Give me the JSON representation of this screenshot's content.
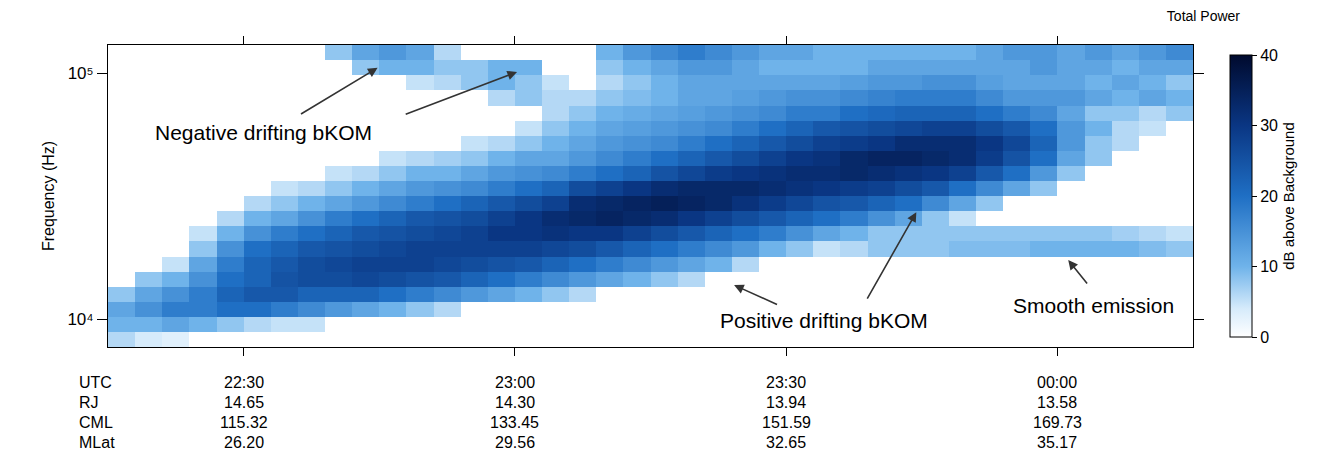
{
  "chart_data": {
    "type": "heatmap",
    "title": "Total Power",
    "y_label": "Frequency (Hz)",
    "log": "y",
    "xlim": [
      22.25,
      24.25
    ],
    "ylim": [
      7700,
      130000
    ],
    "xticks": [
      {
        "value": 22.5,
        "label": "22:30"
      },
      {
        "value": 23,
        "label": "23:00"
      },
      {
        "value": 23.5,
        "label": "23:30"
      },
      {
        "value": 24,
        "label": "00:00"
      }
    ],
    "yticks": [
      {
        "value": 10000,
        "label": "10⁴"
      },
      {
        "value": 100000,
        "label": "10⁵"
      }
    ],
    "xtick_title": "UTC",
    "xtick_rows": [
      {
        "name": "RJ",
        "labels": [
          "14.65",
          "14.30",
          "13.94",
          "13.58"
        ]
      },
      {
        "name": "CML",
        "labels": [
          "115.32",
          "133.45",
          "151.59",
          "169.73"
        ]
      },
      {
        "name": "MLat",
        "labels": [
          "26.20",
          "29.56",
          "32.65",
          "35.17"
        ]
      }
    ],
    "x_edges": [
      22.25,
      22.3,
      22.35,
      22.4,
      22.45,
      22.5,
      22.55,
      22.6,
      22.65,
      22.7,
      22.75,
      22.8,
      22.85,
      22.9,
      22.95,
      23,
      23.05,
      23.1,
      23.15,
      23.2,
      23.25,
      23.3,
      23.35,
      23.4,
      23.45,
      23.5,
      23.55,
      23.6,
      23.65,
      23.7,
      23.75,
      23.8,
      23.85,
      23.9,
      23.95,
      24,
      24.05,
      24.1,
      24.15,
      24.2,
      24.25
    ],
    "y_edges": [
      7700,
      8850,
      10200,
      11750,
      13550,
      15600,
      17950,
      20700,
      23800,
      27500,
      31600,
      36400,
      42000,
      48300,
      55700,
      64100,
      73800,
      85100,
      97900,
      113000,
      130000
    ],
    "values": [
      [
        6,
        4,
        3,
        0,
        0,
        0,
        0,
        0,
        0,
        0,
        0,
        0,
        0,
        0,
        0,
        0,
        0,
        0,
        0,
        0,
        0,
        0,
        0,
        0,
        0,
        0,
        0,
        0,
        0,
        0,
        0,
        0,
        0,
        0,
        0,
        0,
        0,
        0,
        0,
        0
      ],
      [
        10,
        10,
        12,
        10,
        8,
        6,
        5,
        5,
        0,
        0,
        0,
        0,
        0,
        0,
        0,
        0,
        0,
        0,
        0,
        0,
        0,
        0,
        0,
        0,
        0,
        0,
        0,
        0,
        0,
        0,
        0,
        0,
        0,
        0,
        0,
        0,
        0,
        0,
        0,
        0
      ],
      [
        12,
        15,
        18,
        18,
        20,
        20,
        18,
        16,
        14,
        12,
        10,
        8,
        6,
        0,
        0,
        0,
        0,
        0,
        0,
        0,
        0,
        0,
        0,
        0,
        0,
        0,
        0,
        0,
        0,
        0,
        0,
        0,
        0,
        0,
        0,
        0,
        0,
        0,
        0,
        0
      ],
      [
        8,
        12,
        15,
        18,
        22,
        24,
        24,
        22,
        22,
        22,
        20,
        18,
        16,
        14,
        12,
        10,
        8,
        6,
        0,
        0,
        0,
        0,
        0,
        0,
        0,
        0,
        0,
        0,
        0,
        0,
        0,
        0,
        0,
        0,
        0,
        0,
        0,
        0,
        0,
        0
      ],
      [
        0,
        8,
        10,
        15,
        20,
        22,
        25,
        26,
        26,
        27,
        26,
        25,
        24,
        22,
        20,
        18,
        16,
        14,
        12,
        10,
        8,
        6,
        0,
        0,
        0,
        0,
        0,
        0,
        0,
        0,
        0,
        0,
        0,
        0,
        0,
        0,
        0,
        0,
        0,
        0
      ],
      [
        0,
        0,
        5,
        12,
        18,
        22,
        24,
        26,
        27,
        28,
        28,
        28,
        27,
        26,
        25,
        24,
        22,
        20,
        18,
        16,
        14,
        12,
        10,
        6,
        0,
        0,
        0,
        0,
        0,
        0,
        0,
        0,
        0,
        0,
        0,
        0,
        0,
        0,
        0,
        0
      ],
      [
        0,
        0,
        0,
        8,
        15,
        20,
        22,
        24,
        25,
        26,
        27,
        28,
        28,
        28,
        28,
        28,
        27,
        26,
        24,
        22,
        20,
        18,
        16,
        14,
        10,
        8,
        5,
        6,
        8,
        8,
        8,
        9,
        9,
        9,
        10,
        10,
        10,
        10,
        9,
        8
      ],
      [
        0,
        0,
        0,
        5,
        10,
        15,
        18,
        20,
        22,
        24,
        25,
        26,
        27,
        28,
        30,
        30,
        31,
        30,
        30,
        28,
        26,
        24,
        22,
        20,
        18,
        15,
        12,
        10,
        8,
        8,
        8,
        8,
        8,
        8,
        8,
        8,
        8,
        7,
        6,
        5
      ],
      [
        0,
        0,
        0,
        0,
        6,
        10,
        12,
        15,
        18,
        20,
        22,
        24,
        25,
        26,
        28,
        30,
        32,
        33,
        34,
        33,
        32,
        30,
        28,
        26,
        24,
        22,
        20,
        18,
        15,
        12,
        8,
        5,
        0,
        0,
        0,
        0,
        0,
        0,
        0,
        0
      ],
      [
        0,
        0,
        0,
        0,
        0,
        6,
        8,
        10,
        12,
        14,
        16,
        18,
        20,
        22,
        24,
        26,
        28,
        32,
        33,
        34,
        35,
        34,
        33,
        31,
        29,
        27,
        25,
        24,
        22,
        20,
        16,
        12,
        8,
        0,
        0,
        0,
        0,
        0,
        0,
        0
      ],
      [
        0,
        0,
        0,
        0,
        0,
        0,
        5,
        6,
        8,
        10,
        12,
        14,
        15,
        16,
        18,
        20,
        22,
        26,
        28,
        30,
        32,
        33,
        33,
        33,
        32,
        31,
        30,
        29,
        28,
        26,
        24,
        20,
        16,
        12,
        8,
        0,
        0,
        0,
        0,
        0
      ],
      [
        0,
        0,
        0,
        0,
        0,
        0,
        0,
        0,
        5,
        6,
        8,
        10,
        10,
        12,
        14,
        15,
        16,
        18,
        20,
        22,
        25,
        27,
        29,
        30,
        31,
        32,
        32,
        33,
        32,
        31,
        30,
        28,
        24,
        20,
        14,
        8,
        0,
        0,
        0,
        0
      ],
      [
        0,
        0,
        0,
        0,
        0,
        0,
        0,
        0,
        0,
        0,
        5,
        6,
        7,
        8,
        10,
        12,
        12,
        14,
        16,
        18,
        20,
        22,
        24,
        26,
        28,
        30,
        31,
        33,
        34,
        34,
        33,
        32,
        29,
        25,
        20,
        12,
        8,
        0,
        0,
        0
      ],
      [
        0,
        0,
        0,
        0,
        0,
        0,
        0,
        0,
        0,
        0,
        0,
        0,
        0,
        5,
        6,
        8,
        10,
        12,
        14,
        15,
        16,
        18,
        20,
        22,
        24,
        26,
        28,
        29,
        30,
        32,
        32,
        32,
        30,
        27,
        22,
        14,
        8,
        6,
        0,
        0
      ],
      [
        0,
        0,
        0,
        0,
        0,
        0,
        0,
        0,
        0,
        0,
        0,
        0,
        0,
        0,
        0,
        5,
        8,
        10,
        12,
        13,
        14,
        15,
        16,
        18,
        20,
        22,
        24,
        25,
        26,
        27,
        28,
        28,
        26,
        24,
        20,
        14,
        10,
        6,
        5,
        0
      ],
      [
        0,
        0,
        0,
        0,
        0,
        0,
        0,
        0,
        0,
        0,
        0,
        0,
        0,
        0,
        0,
        0,
        6,
        8,
        10,
        11,
        12,
        13,
        14,
        15,
        16,
        18,
        18,
        20,
        21,
        22,
        22,
        22,
        20,
        18,
        16,
        12,
        8,
        8,
        6,
        8
      ],
      [
        0,
        0,
        0,
        0,
        0,
        0,
        0,
        0,
        0,
        0,
        0,
        0,
        0,
        0,
        6,
        8,
        6,
        6,
        8,
        9,
        10,
        12,
        12,
        13,
        14,
        15,
        15,
        16,
        17,
        18,
        18,
        18,
        16,
        14,
        14,
        14,
        12,
        10,
        12,
        10
      ],
      [
        0,
        0,
        0,
        0,
        0,
        0,
        0,
        0,
        0,
        0,
        0,
        5,
        6,
        8,
        10,
        8,
        5,
        0,
        6,
        8,
        10,
        12,
        12,
        12,
        12,
        12,
        12,
        13,
        14,
        14,
        15,
        15,
        13,
        12,
        12,
        12,
        10,
        12,
        10,
        8
      ],
      [
        0,
        0,
        0,
        0,
        0,
        0,
        0,
        0,
        0,
        8,
        10,
        10,
        8,
        8,
        10,
        10,
        0,
        0,
        8,
        10,
        12,
        14,
        14,
        12,
        10,
        10,
        10,
        10,
        12,
        12,
        12,
        12,
        12,
        12,
        14,
        12,
        12,
        10,
        12,
        12
      ],
      [
        0,
        0,
        0,
        0,
        0,
        0,
        0,
        0,
        8,
        12,
        14,
        12,
        6,
        0,
        0,
        0,
        0,
        0,
        10,
        14,
        16,
        18,
        16,
        14,
        12,
        12,
        10,
        10,
        10,
        10,
        10,
        10,
        12,
        14,
        14,
        12,
        14,
        12,
        14,
        16
      ]
    ],
    "colorbar": {
      "range": [
        0,
        40
      ],
      "ticks": [
        0,
        10,
        20,
        30,
        40
      ],
      "title": "dB above Background"
    },
    "annotations": [
      {
        "text": "Negative drifting bKOM",
        "x": 22.537,
        "y": 57500,
        "arrows": [
          {
            "x": 22.747,
            "y": 105000,
            "from_x": 22.603,
            "from_y": 67600
          },
          {
            "x": 23.004,
            "y": 101000,
            "from_x": 22.796,
            "from_y": 67600
          }
        ]
      },
      {
        "text": "Positive drifting bKOM",
        "x": 23.569,
        "y": 9900,
        "arrows": [
          {
            "x": 23.404,
            "y": 13740,
            "from_x": 23.486,
            "from_y": 11400
          },
          {
            "x": 23.74,
            "y": 27200,
            "from_x": 23.648,
            "from_y": 11940
          }
        ]
      },
      {
        "text": "Smooth emission",
        "x": 24.066,
        "y": 11400,
        "arrows": [
          {
            "x": 24.02,
            "y": 17380,
            "from_x": 24.057,
            "from_y": 13740
          }
        ]
      }
    ]
  }
}
